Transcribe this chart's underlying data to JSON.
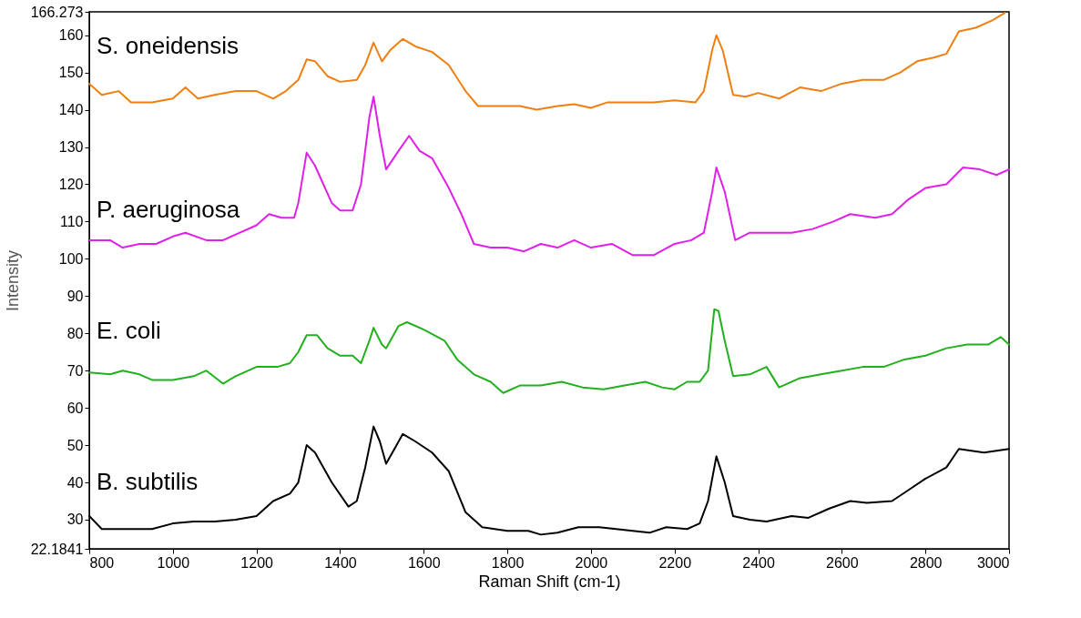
{
  "chart_data": {
    "type": "line",
    "xlabel": "Raman Shift (cm-1)",
    "ylabel": "Intensity",
    "xlim": [
      800,
      3000
    ],
    "xticks": [
      800,
      1000,
      1200,
      1400,
      1600,
      1800,
      2000,
      2200,
      2400,
      2600,
      2800,
      3000
    ],
    "ylim": [
      22.1841,
      166.273
    ],
    "yticks": [
      22.1841,
      30,
      40,
      50,
      60,
      70,
      80,
      90,
      100,
      110,
      120,
      130,
      140,
      150,
      160,
      166.273
    ],
    "grid": false,
    "legend": false,
    "line_style": "solid",
    "marker": "none",
    "series": [
      {
        "name": "S. oneidensis",
        "color": "#f07f10",
        "x": [
          800,
          830,
          870,
          900,
          950,
          1000,
          1030,
          1060,
          1100,
          1150,
          1200,
          1240,
          1270,
          1300,
          1320,
          1340,
          1370,
          1400,
          1440,
          1460,
          1480,
          1500,
          1520,
          1550,
          1580,
          1620,
          1660,
          1700,
          1730,
          1780,
          1830,
          1870,
          1920,
          1960,
          2000,
          2040,
          2100,
          2150,
          2200,
          2250,
          2270,
          2290,
          2300,
          2315,
          2340,
          2370,
          2400,
          2450,
          2500,
          2550,
          2600,
          2650,
          2700,
          2740,
          2780,
          2820,
          2850,
          2880,
          2920,
          2960,
          2990
        ],
        "values": [
          147,
          144,
          145,
          142,
          142,
          143,
          146,
          143,
          144,
          145,
          145,
          143,
          145,
          148,
          153.5,
          153,
          149,
          147.5,
          148,
          152,
          158,
          153,
          156,
          159,
          157,
          155.5,
          152,
          145,
          141,
          141,
          141,
          140,
          141,
          141.5,
          140.5,
          142,
          142,
          142,
          142.5,
          142,
          145,
          156,
          160,
          156,
          144,
          143.5,
          144.5,
          143,
          146,
          145,
          147,
          148,
          148,
          150,
          153,
          154,
          155,
          161,
          162,
          164,
          166
        ]
      },
      {
        "name": "P. aeruginosa",
        "color": "#e020e8",
        "x": [
          800,
          850,
          880,
          920,
          960,
          1000,
          1030,
          1080,
          1120,
          1160,
          1200,
          1230,
          1260,
          1290,
          1300,
          1320,
          1340,
          1360,
          1380,
          1400,
          1430,
          1450,
          1470,
          1480,
          1495,
          1510,
          1540,
          1565,
          1590,
          1620,
          1660,
          1690,
          1720,
          1760,
          1800,
          1840,
          1880,
          1920,
          1960,
          2000,
          2050,
          2100,
          2150,
          2200,
          2240,
          2270,
          2290,
          2300,
          2320,
          2345,
          2380,
          2420,
          2480,
          2530,
          2580,
          2620,
          2680,
          2720,
          2760,
          2800,
          2850,
          2890,
          2930,
          2970,
          3000
        ],
        "values": [
          105,
          105,
          103,
          104,
          104,
          106,
          107,
          105,
          105,
          107,
          109,
          112,
          111,
          111,
          115,
          128.5,
          125,
          120,
          115,
          113,
          113,
          120,
          138,
          143.5,
          133,
          124,
          129,
          133,
          129,
          127,
          119,
          112,
          104,
          103,
          103,
          102,
          104,
          103,
          105,
          103,
          104,
          101,
          101,
          104,
          105,
          107,
          118,
          124.5,
          118,
          105,
          107,
          107,
          107,
          108,
          110,
          112,
          111,
          112,
          116,
          119,
          120,
          124.5,
          124,
          122.5,
          124
        ]
      },
      {
        "name": "E. coli",
        "color": "#22b01e",
        "x": [
          800,
          850,
          880,
          920,
          950,
          1000,
          1050,
          1080,
          1120,
          1150,
          1200,
          1250,
          1280,
          1300,
          1320,
          1345,
          1370,
          1400,
          1430,
          1450,
          1470,
          1480,
          1500,
          1510,
          1540,
          1560,
          1600,
          1650,
          1680,
          1720,
          1760,
          1790,
          1830,
          1880,
          1930,
          1980,
          2030,
          2080,
          2130,
          2170,
          2200,
          2230,
          2260,
          2280,
          2295,
          2305,
          2320,
          2340,
          2380,
          2420,
          2450,
          2500,
          2550,
          2600,
          2650,
          2700,
          2750,
          2800,
          2850,
          2900,
          2950,
          2980,
          3000
        ],
        "values": [
          69.5,
          69,
          70,
          69,
          67.5,
          67.5,
          68.5,
          70,
          66.5,
          68.5,
          71,
          71,
          72,
          75,
          79.5,
          79.5,
          76,
          74,
          74,
          72,
          78,
          81.5,
          77,
          76,
          82,
          83,
          81,
          78,
          73,
          69,
          67,
          64,
          66,
          66,
          67,
          65.5,
          65,
          66,
          67,
          65.5,
          65,
          67,
          67,
          70,
          86.5,
          86,
          78,
          68.5,
          69,
          71,
          65.5,
          68,
          69,
          70,
          71,
          71,
          73,
          74,
          76,
          77,
          77,
          79,
          77
        ]
      },
      {
        "name": "B. subtilis",
        "color": "#000000",
        "x": [
          800,
          830,
          900,
          950,
          1000,
          1050,
          1100,
          1150,
          1200,
          1240,
          1280,
          1300,
          1320,
          1340,
          1380,
          1420,
          1440,
          1460,
          1480,
          1495,
          1510,
          1530,
          1550,
          1580,
          1620,
          1660,
          1700,
          1740,
          1800,
          1850,
          1880,
          1920,
          1970,
          2020,
          2060,
          2100,
          2140,
          2180,
          2230,
          2260,
          2280,
          2300,
          2320,
          2340,
          2380,
          2420,
          2480,
          2520,
          2570,
          2620,
          2660,
          2720,
          2760,
          2800,
          2850,
          2880,
          2940,
          3000
        ],
        "values": [
          31,
          27.5,
          27.5,
          27.5,
          29,
          29.5,
          29.5,
          30,
          31,
          35,
          37,
          40,
          50,
          48,
          40,
          33.5,
          35,
          44,
          55,
          51,
          45,
          49,
          53,
          51,
          48,
          43,
          32,
          28,
          27,
          27,
          26,
          26.5,
          28,
          28,
          27.5,
          27,
          26.5,
          28,
          27.5,
          29,
          35,
          47,
          40,
          31,
          30,
          29.5,
          31,
          30.5,
          33,
          35,
          34.5,
          35,
          38,
          41,
          44,
          49,
          48,
          49
        ]
      }
    ]
  }
}
